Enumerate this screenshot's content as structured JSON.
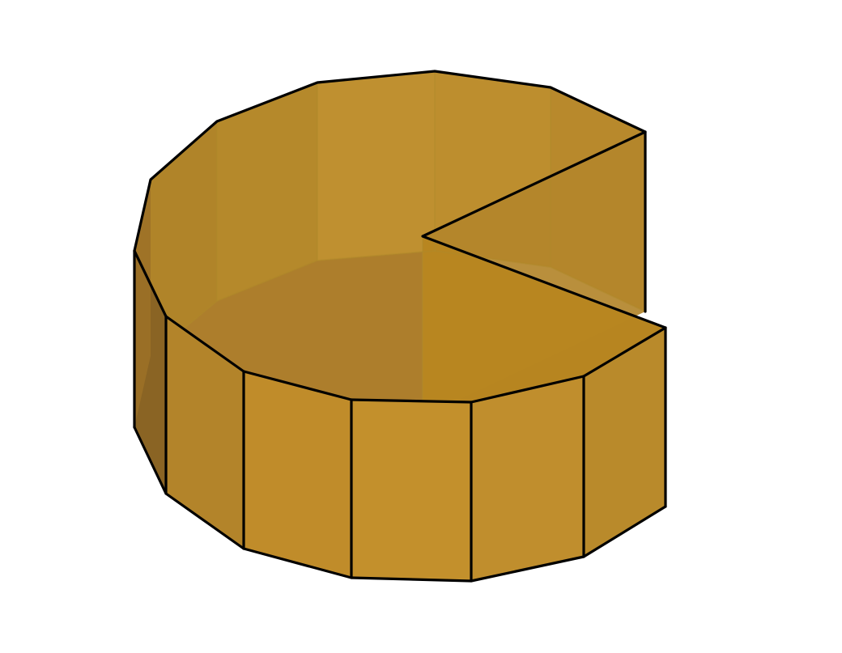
{
  "figure": {
    "subject": "open-prism-sector-solid",
    "colors": {
      "background": "#ffffff",
      "face_main": "#c08c2a",
      "face_inner": "#b88a2c",
      "face_inner_dark": "#a87a28",
      "face_left_dark": "#8a6424",
      "floor": "#ad7e2c",
      "edge": "#000000"
    }
  }
}
